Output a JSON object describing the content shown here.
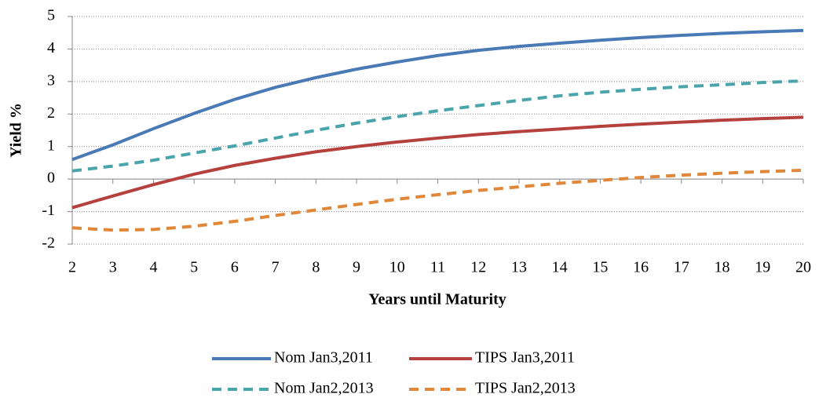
{
  "chart_data": {
    "type": "line",
    "x_label": "Years until Maturity",
    "y_label": "Yield %",
    "x": [
      2,
      3,
      4,
      5,
      6,
      7,
      8,
      9,
      10,
      11,
      12,
      13,
      14,
      15,
      16,
      17,
      18,
      19,
      20
    ],
    "xlim": [
      2,
      20
    ],
    "xticks": [
      2,
      3,
      4,
      5,
      6,
      7,
      8,
      9,
      10,
      11,
      12,
      13,
      14,
      15,
      16,
      17,
      18,
      19,
      20
    ],
    "ylim": [
      -2,
      5
    ],
    "yticks": [
      -2,
      -1,
      0,
      1,
      2,
      3,
      4,
      5
    ],
    "grid": true,
    "legend": "bottom",
    "series": [
      {
        "name": "Nom Jan3,2011",
        "color": "#4a7ab5",
        "dashed": false,
        "values": [
          0.6,
          1.05,
          1.55,
          2.02,
          2.45,
          2.82,
          3.12,
          3.38,
          3.6,
          3.8,
          3.96,
          4.08,
          4.18,
          4.27,
          4.35,
          4.42,
          4.48,
          4.53,
          4.57
        ]
      },
      {
        "name": "TIPS Jan3,2011",
        "color": "#b5413f",
        "dashed": false,
        "values": [
          -0.88,
          -0.52,
          -0.17,
          0.15,
          0.42,
          0.64,
          0.84,
          1.0,
          1.14,
          1.26,
          1.37,
          1.46,
          1.54,
          1.62,
          1.69,
          1.75,
          1.81,
          1.86,
          1.9
        ]
      },
      {
        "name": "Nom Jan2,2013",
        "color": "#4aa4ab",
        "dashed": true,
        "values": [
          0.25,
          0.4,
          0.58,
          0.8,
          1.02,
          1.26,
          1.5,
          1.72,
          1.92,
          2.1,
          2.26,
          2.42,
          2.56,
          2.67,
          2.76,
          2.84,
          2.9,
          2.97,
          3.02
        ]
      },
      {
        "name": "TIPS Jan2,2013",
        "color": "#e0873a",
        "dashed": true,
        "values": [
          -1.5,
          -1.57,
          -1.55,
          -1.45,
          -1.3,
          -1.12,
          -0.95,
          -0.78,
          -0.62,
          -0.48,
          -0.35,
          -0.24,
          -0.13,
          -0.04,
          0.05,
          0.12,
          0.18,
          0.23,
          0.27
        ]
      }
    ]
  }
}
